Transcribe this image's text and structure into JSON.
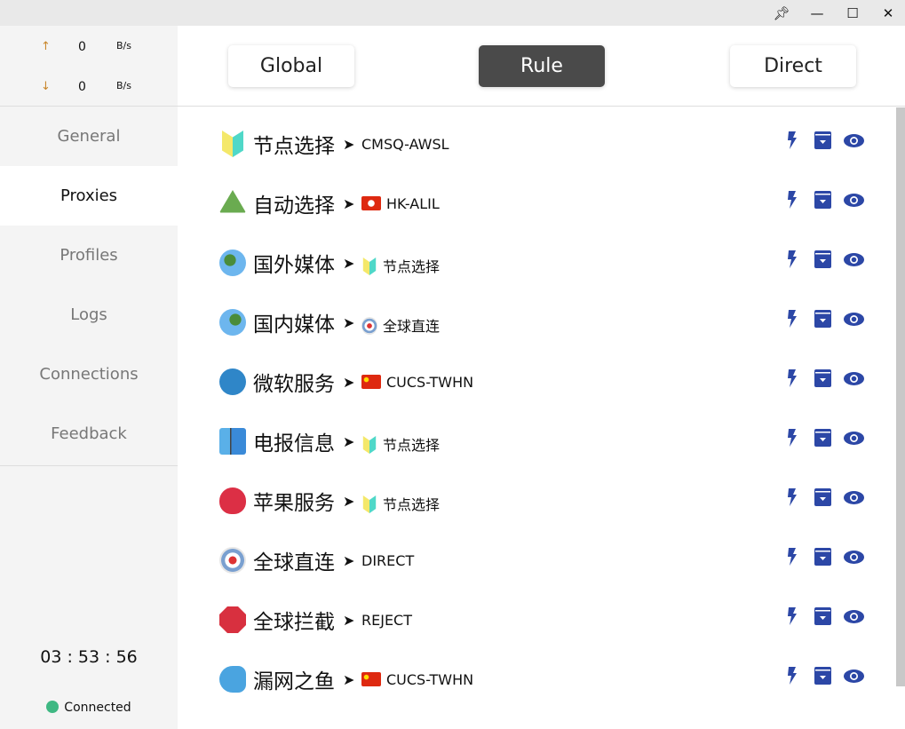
{
  "window": {
    "controls": [
      "pin-icon",
      "minimize-icon",
      "maximize-icon",
      "close-icon"
    ]
  },
  "speed": {
    "up_arrow": "↑",
    "up_value": "0",
    "up_unit": "B/s",
    "down_arrow": "↓",
    "down_value": "0",
    "down_unit": "B/s"
  },
  "nav": [
    {
      "label": "General"
    },
    {
      "label": "Proxies",
      "active": true
    },
    {
      "label": "Profiles"
    },
    {
      "label": "Logs"
    },
    {
      "label": "Connections"
    },
    {
      "label": "Feedback"
    }
  ],
  "clock": "03 : 53 : 56",
  "status": {
    "label": "Connected",
    "color": "#3fb883"
  },
  "modes": [
    {
      "label": "Global"
    },
    {
      "label": "Rule",
      "active": true
    },
    {
      "label": "Direct"
    }
  ],
  "accent": "#2c47a6",
  "groups": [
    {
      "icon": "beginner-icon",
      "name": "节点选择",
      "target_icon": "",
      "target": "CMSQ-AWSL"
    },
    {
      "icon": "recycle-icon",
      "name": "自动选择",
      "target_icon": "hk-flag-icon",
      "target": "HK-ALIL"
    },
    {
      "icon": "globe-africa-icon",
      "name": "国外媒体",
      "target_icon": "beginner-icon",
      "target": "节点选择"
    },
    {
      "icon": "globe-asia-icon",
      "name": "国内媒体",
      "target_icon": "target-icon",
      "target": "全球直连"
    },
    {
      "icon": "m-circle-icon",
      "name": "微软服务",
      "target_icon": "cn-flag-icon",
      "target": "CUCS-TWHN"
    },
    {
      "icon": "phone-arrow-icon",
      "name": "电报信息",
      "target_icon": "beginner-icon",
      "target": "节点选择"
    },
    {
      "icon": "apple-icon",
      "name": "苹果服务",
      "target_icon": "beginner-icon",
      "target": "节点选择"
    },
    {
      "icon": "target-icon",
      "name": "全球直连",
      "target_icon": "",
      "target": "DIRECT"
    },
    {
      "icon": "stop-sign-icon",
      "name": "全球拦截",
      "target_icon": "",
      "target": "REJECT"
    },
    {
      "icon": "fish-icon",
      "name": "漏网之鱼",
      "target_icon": "cn-flag-icon",
      "target": "CUCS-TWHN"
    }
  ],
  "arrow": "➤"
}
